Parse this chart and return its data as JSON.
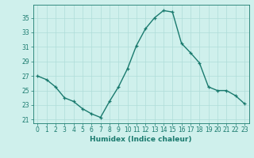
{
  "x": [
    0,
    1,
    2,
    3,
    4,
    5,
    6,
    7,
    8,
    9,
    10,
    11,
    12,
    13,
    14,
    15,
    16,
    17,
    18,
    19,
    20,
    21,
    22,
    23
  ],
  "y": [
    27.0,
    26.5,
    25.5,
    24.0,
    23.5,
    22.5,
    21.8,
    21.3,
    23.5,
    25.5,
    28.0,
    31.2,
    33.5,
    35.0,
    36.0,
    35.8,
    31.5,
    30.2,
    28.8,
    25.5,
    25.0,
    25.0,
    24.3,
    23.2
  ],
  "line_color": "#1a7a6e",
  "marker": "+",
  "markersize": 3,
  "linewidth": 1.0,
  "background_color": "#cff0ec",
  "grid_color": "#aeddd8",
  "xlabel": "Humidex (Indice chaleur)",
  "xlim": [
    -0.5,
    23.5
  ],
  "ylim": [
    20.5,
    36.8
  ],
  "yticks": [
    21,
    23,
    25,
    27,
    29,
    31,
    33,
    35
  ],
  "xticks": [
    0,
    1,
    2,
    3,
    4,
    5,
    6,
    7,
    8,
    9,
    10,
    11,
    12,
    13,
    14,
    15,
    16,
    17,
    18,
    19,
    20,
    21,
    22,
    23
  ],
  "tick_fontsize": 5.5,
  "xlabel_fontsize": 6.5
}
